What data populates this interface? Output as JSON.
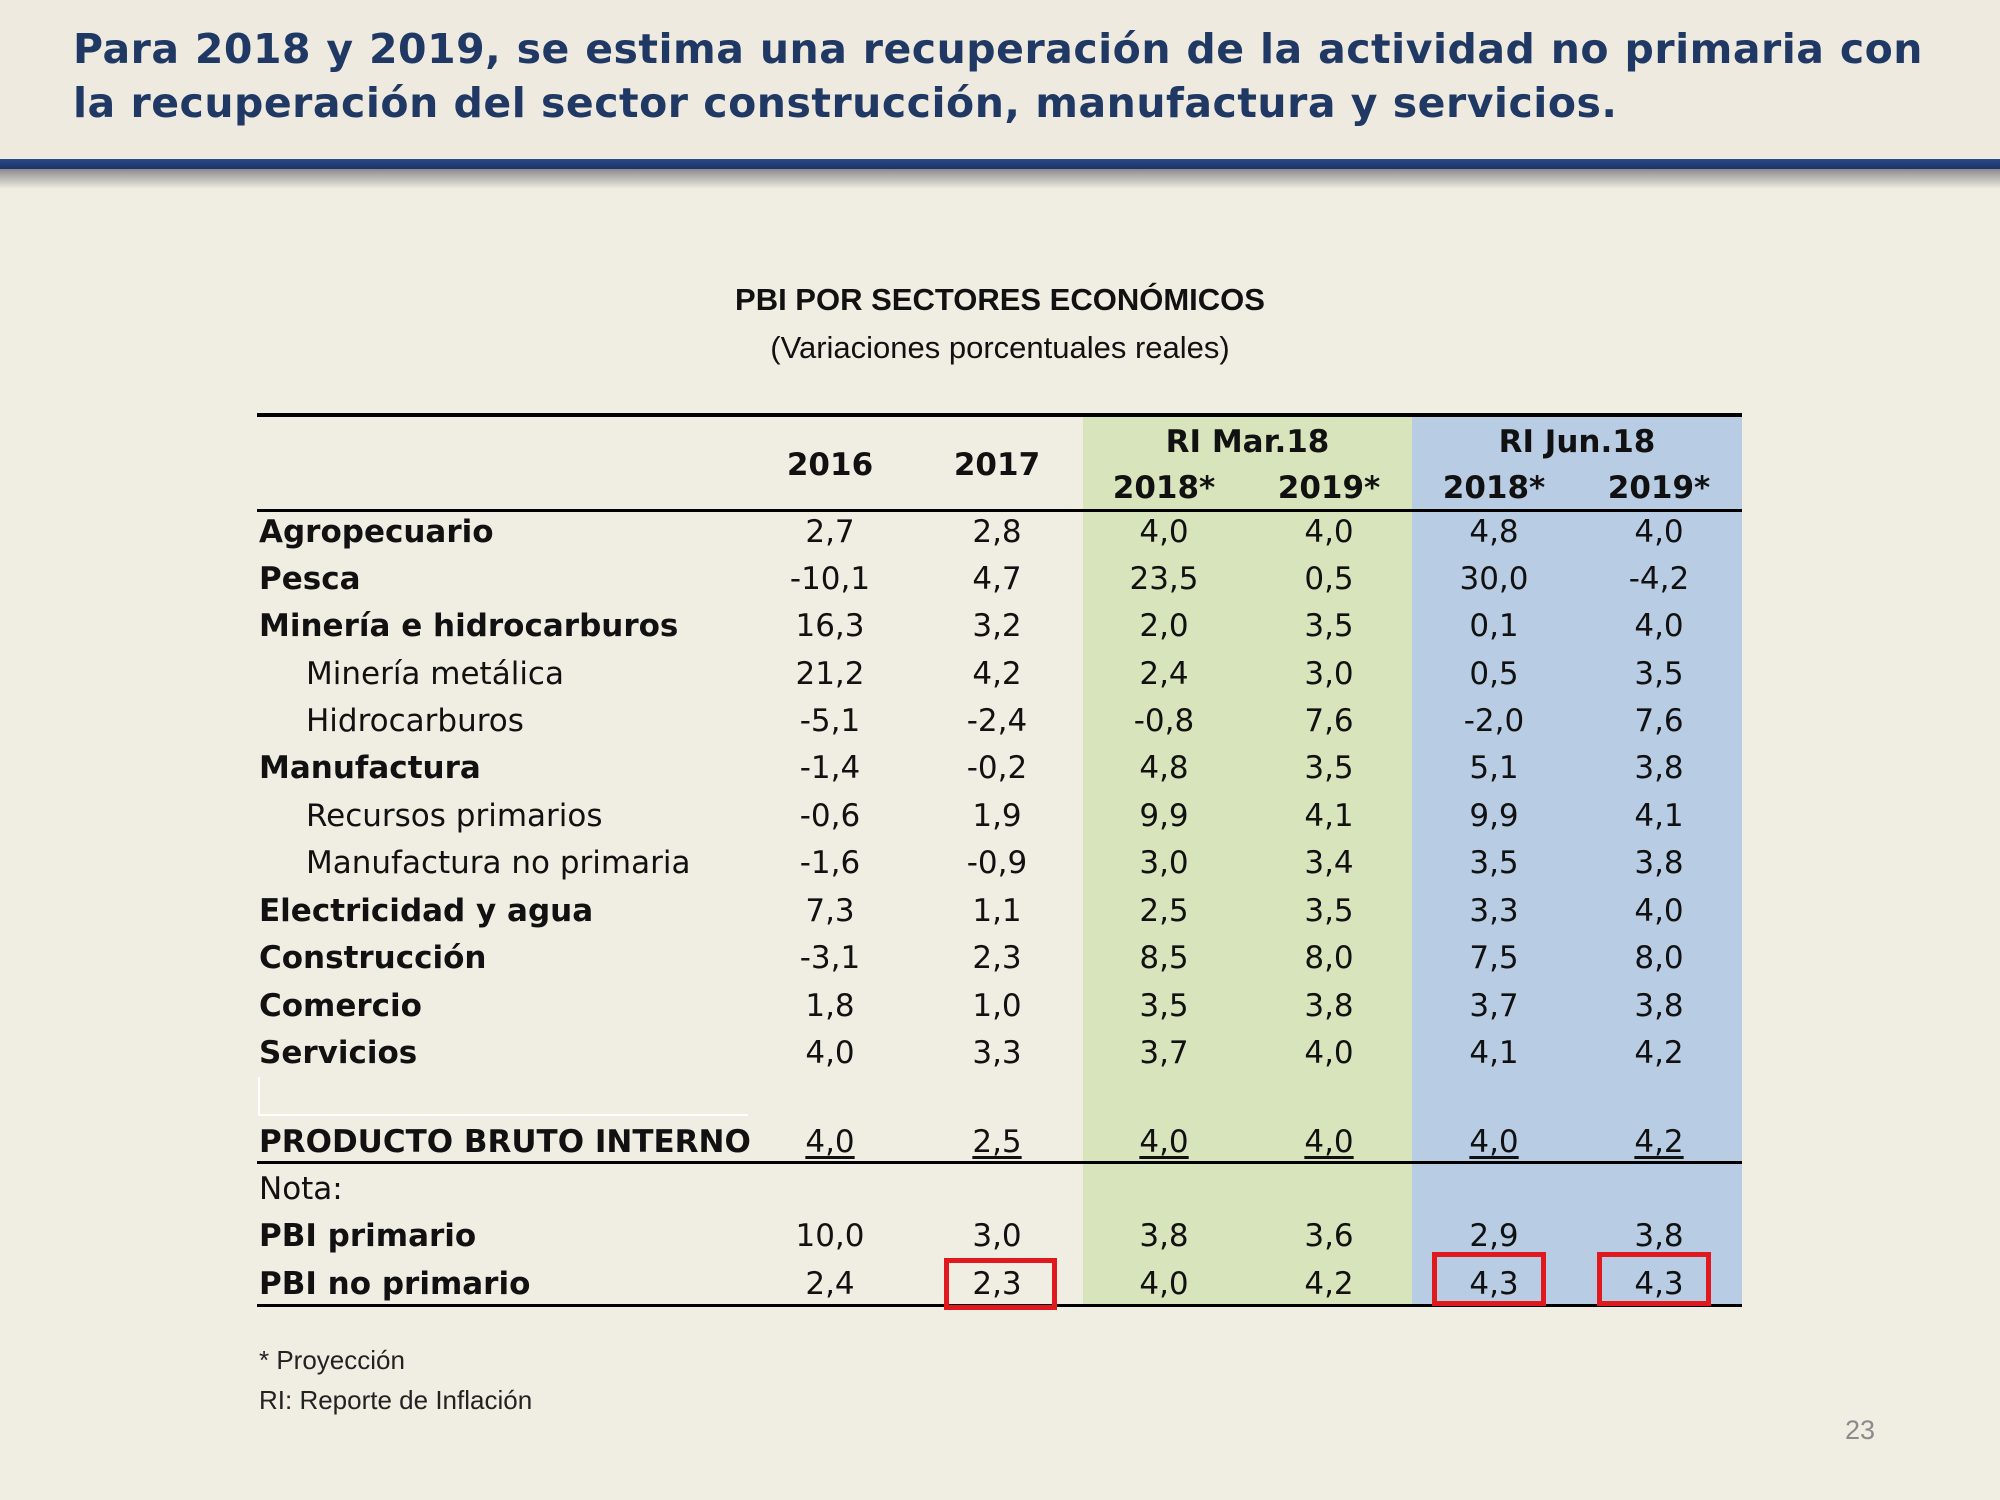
{
  "headline": "Para 2018 y 2019, se estima una recuperación de la actividad no primaria con la recuperación del sector construcción, manufactura y servicios.",
  "table": {
    "title": "PBI POR SECTORES ECONÓMICOS",
    "subtitle": "(Variaciones porcentuales reales)",
    "groups": [
      "RI Mar.18",
      "RI Jun.18"
    ],
    "columns": [
      "2016",
      "2017",
      "2018*",
      "2019*",
      "2018*",
      "2019*"
    ],
    "rows": [
      {
        "label": "Agropecuario",
        "values": [
          "2,7",
          "2,8",
          "4,0",
          "4,0",
          "4,8",
          "4,0"
        ]
      },
      {
        "label": "Pesca",
        "values": [
          "-10,1",
          "4,7",
          "23,5",
          "0,5",
          "30,0",
          "-4,2"
        ]
      },
      {
        "label": "Minería e hidrocarburos",
        "values": [
          "16,3",
          "3,2",
          "2,0",
          "3,5",
          "0,1",
          "4,0"
        ]
      },
      {
        "label": "Minería metálica",
        "values": [
          "21,2",
          "4,2",
          "2,4",
          "3,0",
          "0,5",
          "3,5"
        ]
      },
      {
        "label": "Hidrocarburos",
        "values": [
          "-5,1",
          "-2,4",
          "-0,8",
          "7,6",
          "-2,0",
          "7,6"
        ]
      },
      {
        "label": "Manufactura",
        "values": [
          "-1,4",
          "-0,2",
          "4,8",
          "3,5",
          "5,1",
          "3,8"
        ]
      },
      {
        "label": "Recursos primarios",
        "values": [
          "-0,6",
          "1,9",
          "9,9",
          "4,1",
          "9,9",
          "4,1"
        ]
      },
      {
        "label": "Manufactura no primaria",
        "values": [
          "-1,6",
          "-0,9",
          "3,0",
          "3,4",
          "3,5",
          "3,8"
        ]
      },
      {
        "label": "Electricidad y agua",
        "values": [
          "7,3",
          "1,1",
          "2,5",
          "3,5",
          "3,3",
          "4,0"
        ]
      },
      {
        "label": "Construcción",
        "values": [
          "-3,1",
          "2,3",
          "8,5",
          "8,0",
          "7,5",
          "8,0"
        ]
      },
      {
        "label": "Comercio",
        "values": [
          "1,8",
          "1,0",
          "3,5",
          "3,8",
          "3,7",
          "3,8"
        ]
      },
      {
        "label": "Servicios",
        "values": [
          "4,0",
          "3,3",
          "3,7",
          "4,0",
          "4,1",
          "4,2"
        ]
      }
    ],
    "total": {
      "label": "PRODUCTO BRUTO INTERNO",
      "values": [
        "4,0",
        "2,5",
        "4,0",
        "4,0",
        "4,0",
        "4,2"
      ]
    },
    "nota_label": "Nota:",
    "notes": [
      {
        "label": "PBI primario",
        "values": [
          "10,0",
          "3,0",
          "3,8",
          "3,6",
          "2,9",
          "3,8"
        ]
      },
      {
        "label": "PBI no primario",
        "values": [
          "2,4",
          "2,3",
          "4,0",
          "4,2",
          "4,3",
          "4,3"
        ]
      }
    ]
  },
  "footnotes": [
    "* Proyección",
    "RI: Reporte de Inflación"
  ],
  "page_number": "23",
  "colors": {
    "headline": "#1f3864",
    "mar18_band": "#d8e4bc",
    "jun18_band": "#b8cce4",
    "highlight": "#e0191e"
  }
}
